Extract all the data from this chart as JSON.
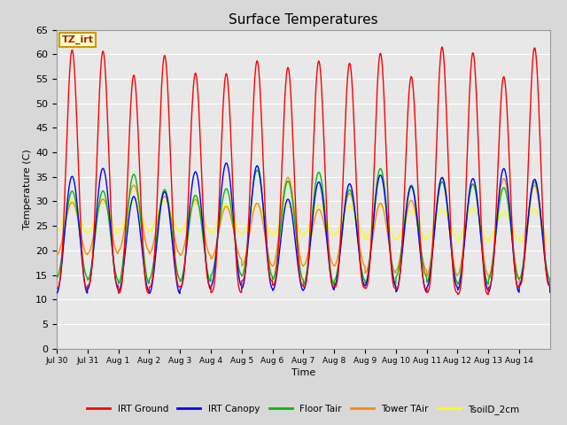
{
  "title": "Surface Temperatures",
  "xlabel": "Time",
  "ylabel": "Temperature (C)",
  "ylim": [
    0,
    65
  ],
  "yticks": [
    0,
    5,
    10,
    15,
    20,
    25,
    30,
    35,
    40,
    45,
    50,
    55,
    60,
    65
  ],
  "tz_label": "TZ_irt",
  "legend_entries": [
    "IRT Ground",
    "IRT Canopy",
    "Floor Tair",
    "Tower TAir",
    "TsoilD_2cm"
  ],
  "line_colors": {
    "irt_ground": "#ff0000",
    "irt_canopy": "#0000ff",
    "floor_tair": "#00bb00",
    "tower_tair": "#ff8800",
    "tsoild_2cm": "#ffff00"
  },
  "legend_colors": [
    "#ff0000",
    "#0000ff",
    "#00bb00",
    "#ff8800",
    "#ffff00"
  ],
  "fig_bg_color": "#d8d8d8",
  "plot_bg_color": "#e8e8e8",
  "x_tick_labels": [
    "Jul 30",
    "Jul 31",
    "Aug 1",
    "Aug 2",
    "Aug 3",
    "Aug 4",
    "Aug 5",
    "Aug 6",
    "Aug 7",
    "Aug 8",
    "Aug 9",
    "Aug 10",
    "Aug 11",
    "Aug 12",
    "Aug 13",
    "Aug 14"
  ],
  "x_tick_days": [
    210,
    211,
    212,
    213,
    214,
    215,
    216,
    217,
    218,
    219,
    220,
    221,
    222,
    223,
    224,
    225
  ]
}
